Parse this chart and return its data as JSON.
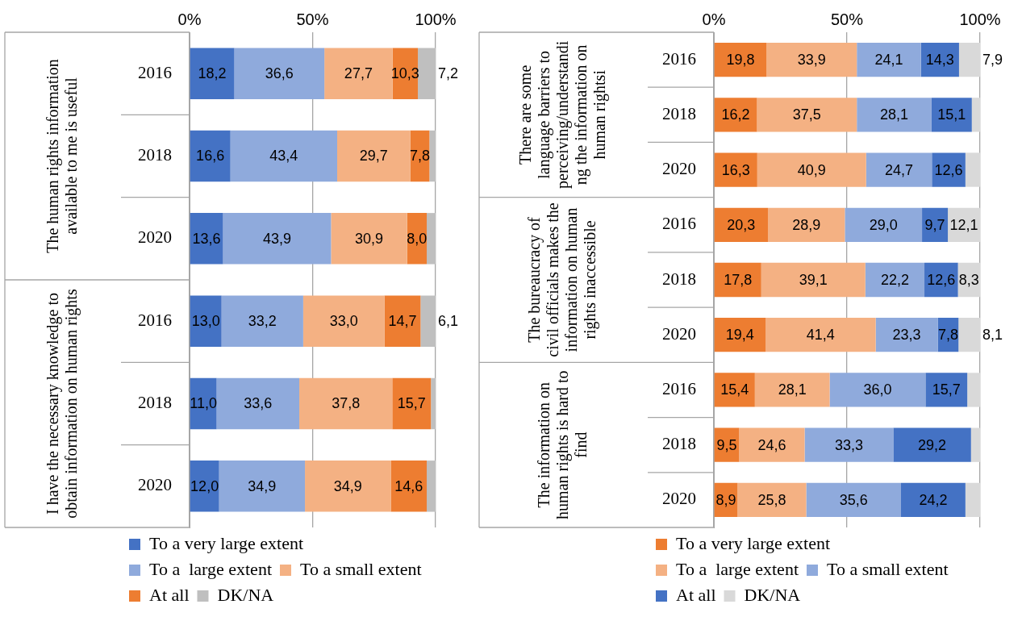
{
  "chart_data": [
    {
      "type": "bar",
      "orientation": "horizontal",
      "stacked": true,
      "grid": "x",
      "legend": "bottom",
      "categories": [
        "2016",
        "2018",
        "2020",
        "2016",
        "2018",
        "2020"
      ],
      "annotations": [
        "The human rights information available to me is useful",
        "I have the necessary knowledge to obtain information on human rights"
      ],
      "xlim": [
        0,
        100
      ],
      "xticks": [
        {
          "value": 0,
          "label": "0%"
        },
        {
          "value": 50,
          "label": "50%"
        },
        {
          "value": 100,
          "label": "100%"
        }
      ],
      "series": [
        {
          "name": "To a very large extent",
          "color": "#4472c4",
          "values": [
            18.2,
            16.6,
            13.6,
            13.0,
            11.0,
            12.0
          ],
          "value_labels": [
            "18,2",
            "16,6",
            "13,6",
            "13,0",
            "11,0",
            "12,0"
          ]
        },
        {
          "name": "To a  large extent",
          "color": "#8faadc",
          "values": [
            36.6,
            43.4,
            43.9,
            33.2,
            33.6,
            34.9
          ],
          "value_labels": [
            "36,6",
            "43,4",
            "43,9",
            "33,2",
            "33,6",
            "34,9"
          ]
        },
        {
          "name": "To a small extent",
          "color": "#f4b183",
          "values": [
            27.7,
            29.7,
            30.9,
            33.0,
            37.8,
            34.9
          ],
          "value_labels": [
            "27,7",
            "29,7",
            "30,9",
            "33,0",
            "37,8",
            "34,9"
          ]
        },
        {
          "name": "At all",
          "color": "#ed7d31",
          "values": [
            10.3,
            7.8,
            8.0,
            14.7,
            15.7,
            14.6
          ],
          "value_labels": [
            "10,3",
            "7,8",
            "8,0",
            "14,7",
            "15,7",
            "14,6"
          ]
        },
        {
          "name": "DK/NA",
          "color": "#bfbfbf",
          "values": [
            7.2,
            2.5,
            3.6,
            6.1,
            1.9,
            3.6
          ],
          "value_labels": [
            "7,2",
            null,
            null,
            "6,1",
            null,
            null
          ]
        }
      ]
    },
    {
      "type": "bar",
      "orientation": "horizontal",
      "stacked": true,
      "grid": "x",
      "legend": "bottom",
      "categories": [
        "2016",
        "2018",
        "2020",
        "2016",
        "2018",
        "2020",
        "2016",
        "2018",
        "2020"
      ],
      "annotations": [
        "There are some language barriers to perceiving/understanding the information on human rightsi",
        "The bureaucracy of civil officials makes the information on human rights inaccessible",
        "The information on human rights is hard to find"
      ],
      "xlim": [
        0,
        100
      ],
      "xticks": [
        {
          "value": 0,
          "label": "0%"
        },
        {
          "value": 50,
          "label": "50%"
        },
        {
          "value": 100,
          "label": "100%"
        }
      ],
      "series": [
        {
          "name": "To a very large extent",
          "color": "#ed7d31",
          "values": [
            19.8,
            16.2,
            16.3,
            20.3,
            17.8,
            19.4,
            15.4,
            9.5,
            8.9
          ],
          "value_labels": [
            "19,8",
            "16,2",
            "16,3",
            "20,3",
            "17,8",
            "19,4",
            "15,4",
            "9,5",
            "8,9"
          ]
        },
        {
          "name": "To a  large extent",
          "color": "#f4b183",
          "values": [
            33.9,
            37.5,
            40.9,
            28.9,
            39.1,
            41.4,
            28.1,
            24.6,
            25.8
          ],
          "value_labels": [
            "33,9",
            "37,5",
            "40,9",
            "28,9",
            "39,1",
            "41,4",
            "28,1",
            "24,6",
            "25,8"
          ]
        },
        {
          "name": "To a small extent",
          "color": "#8faadc",
          "values": [
            24.1,
            28.1,
            24.7,
            29.0,
            22.2,
            23.3,
            36.0,
            33.3,
            35.6
          ],
          "value_labels": [
            "24,1",
            "28,1",
            "24,7",
            "29,0",
            "22,2",
            "23,3",
            "36,0",
            "33,3",
            "35,6"
          ]
        },
        {
          "name": "At all",
          "color": "#4472c4",
          "values": [
            14.3,
            15.1,
            12.6,
            9.7,
            12.6,
            7.8,
            15.7,
            29.2,
            24.2
          ],
          "value_labels": [
            "14,3",
            "15,1",
            "12,6",
            "9,7",
            "12,6",
            "7,8",
            "15,7",
            "29,2",
            "24,2"
          ]
        },
        {
          "name": "DK/NA",
          "color": "#d9d9d9",
          "values": [
            7.9,
            3.1,
            5.5,
            12.1,
            8.3,
            8.1,
            4.8,
            3.4,
            5.5
          ],
          "value_labels": [
            "7,9",
            null,
            null,
            "12,1",
            "8,3",
            "8,1",
            null,
            null,
            null
          ]
        }
      ]
    }
  ]
}
